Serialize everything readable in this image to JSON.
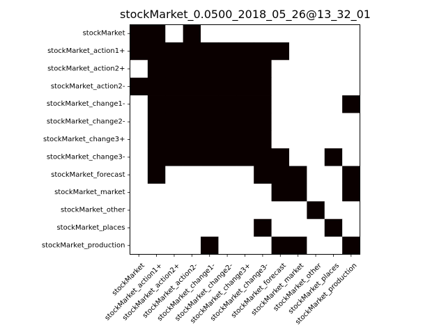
{
  "chart_data": {
    "type": "heatmap",
    "title": "stockMarket_0.0500_2018_05_26@13_32_01",
    "labels": [
      "stockMarket",
      "stockMarket_action1+",
      "stockMarket_action2+",
      "stockMarket_action2-",
      "stockMarket_change1-",
      "stockMarket_change2-",
      "stockMarket_change3+",
      "stockMarket_change3-",
      "stockMarket_forecast",
      "stockMarket_market",
      "stockMarket_other",
      "stockMarket_places",
      "stockMarket_production"
    ],
    "matrix": [
      [
        1,
        1,
        0,
        1,
        0,
        0,
        0,
        0,
        0,
        0,
        0,
        0,
        0
      ],
      [
        1,
        1,
        1,
        1,
        1,
        1,
        1,
        1,
        1,
        0,
        0,
        0,
        0
      ],
      [
        0,
        1,
        1,
        1,
        1,
        1,
        1,
        1,
        0,
        0,
        0,
        0,
        0
      ],
      [
        1,
        1,
        1,
        1,
        1,
        1,
        1,
        1,
        0,
        0,
        0,
        0,
        0
      ],
      [
        0,
        1,
        1,
        1,
        1,
        1,
        1,
        1,
        0,
        0,
        0,
        0,
        1
      ],
      [
        0,
        1,
        1,
        1,
        1,
        1,
        1,
        1,
        0,
        0,
        0,
        0,
        0
      ],
      [
        0,
        1,
        1,
        1,
        1,
        1,
        1,
        1,
        0,
        0,
        0,
        0,
        0
      ],
      [
        0,
        1,
        1,
        1,
        1,
        1,
        1,
        1,
        1,
        0,
        0,
        1,
        0
      ],
      [
        0,
        1,
        0,
        0,
        0,
        0,
        0,
        1,
        1,
        1,
        0,
        0,
        1
      ],
      [
        0,
        0,
        0,
        0,
        0,
        0,
        0,
        0,
        1,
        1,
        0,
        0,
        1
      ],
      [
        0,
        0,
        0,
        0,
        0,
        0,
        0,
        0,
        0,
        0,
        1,
        0,
        0
      ],
      [
        0,
        0,
        0,
        0,
        0,
        0,
        0,
        1,
        0,
        0,
        0,
        1,
        0
      ],
      [
        0,
        0,
        0,
        0,
        1,
        0,
        0,
        0,
        1,
        1,
        0,
        0,
        1
      ]
    ],
    "colors": {
      "on": "#0a0000",
      "off": "#ffffff"
    },
    "grid": false
  }
}
